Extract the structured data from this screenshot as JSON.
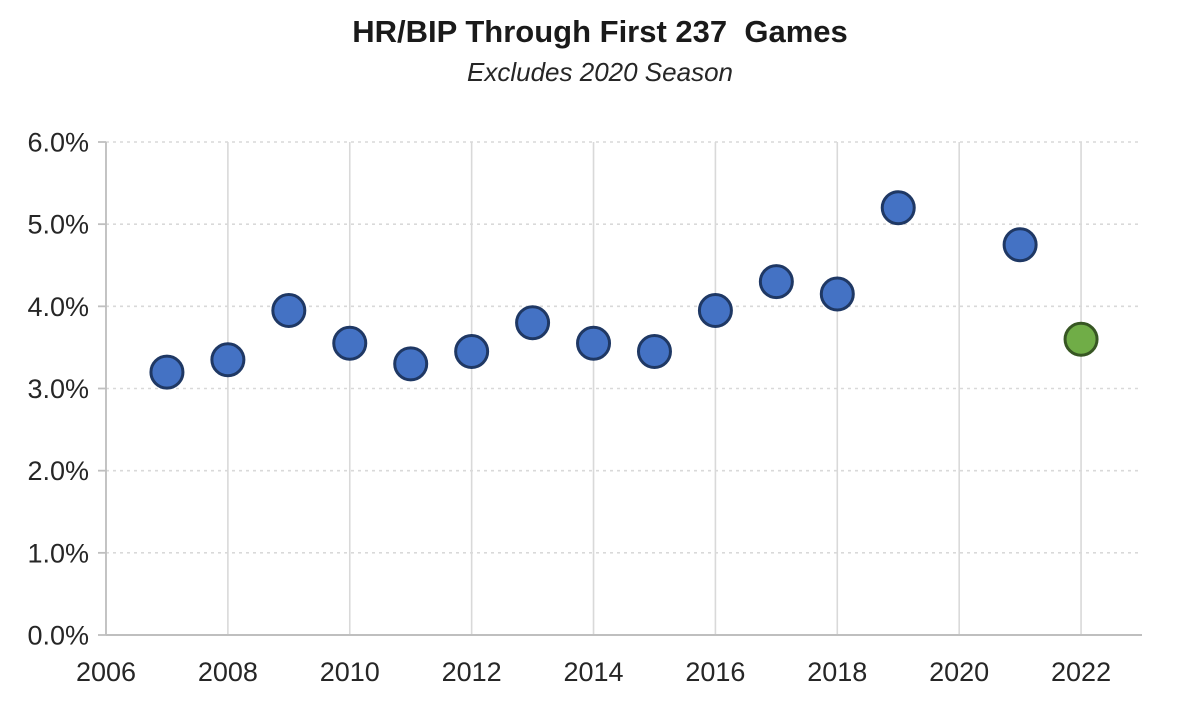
{
  "chart_data": {
    "type": "scatter",
    "title": "HR/BIP Through First 237  Games",
    "subtitle": "Excludes 2020 Season",
    "xlabel": "",
    "ylabel": "",
    "xlim": [
      2006,
      2023
    ],
    "ylim": [
      0,
      6
    ],
    "x_tick_years": [
      "2006",
      "2008",
      "2010",
      "2012",
      "2014",
      "2016",
      "2018",
      "2020",
      "2022"
    ],
    "y_tick_labels": [
      "0.0%",
      "1.0%",
      "2.0%",
      "3.0%",
      "4.0%",
      "5.0%",
      "6.0%"
    ],
    "grid": {
      "horizontal_style": "dashed",
      "vertical_style": "solid",
      "gridline_color": "#D9D9D9",
      "axis_color": "#BFBFBF"
    },
    "legend_position": "none",
    "series": [
      {
        "name": "series-blue",
        "marker_fill": "#4472C4",
        "marker_border": "#1F3864",
        "points": [
          {
            "year": 2007,
            "hr_bip_pct": 3.2
          },
          {
            "year": 2008,
            "hr_bip_pct": 3.35
          },
          {
            "year": 2009,
            "hr_bip_pct": 3.95
          },
          {
            "year": 2010,
            "hr_bip_pct": 3.55
          },
          {
            "year": 2011,
            "hr_bip_pct": 3.3
          },
          {
            "year": 2012,
            "hr_bip_pct": 3.45
          },
          {
            "year": 2013,
            "hr_bip_pct": 3.8
          },
          {
            "year": 2014,
            "hr_bip_pct": 3.55
          },
          {
            "year": 2015,
            "hr_bip_pct": 3.45
          },
          {
            "year": 2016,
            "hr_bip_pct": 3.95
          },
          {
            "year": 2017,
            "hr_bip_pct": 4.3
          },
          {
            "year": 2018,
            "hr_bip_pct": 4.15
          },
          {
            "year": 2019,
            "hr_bip_pct": 5.2
          },
          {
            "year": 2021,
            "hr_bip_pct": 4.75
          }
        ]
      },
      {
        "name": "series-green",
        "marker_fill": "#70AD47",
        "marker_border": "#375623",
        "points": [
          {
            "year": 2022,
            "hr_bip_pct": 3.6
          }
        ]
      }
    ]
  }
}
